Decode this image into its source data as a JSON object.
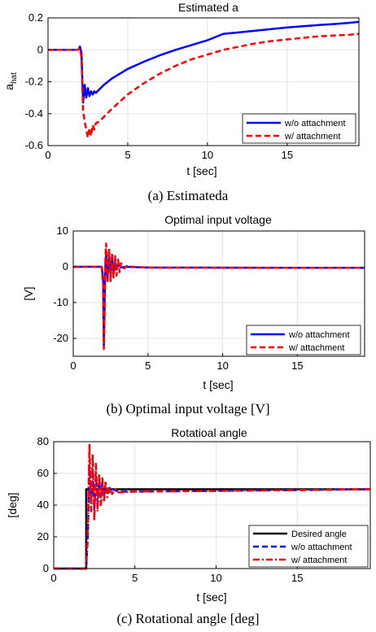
{
  "chart_data": [
    {
      "type": "line",
      "title": "Estimated a",
      "xlabel": "t [sec]",
      "ylabel_main": "a",
      "ylabel_sub": "hat",
      "caption": "(a) Estimateda",
      "xlim": [
        0,
        19.5
      ],
      "ylim": [
        -0.6,
        0.2
      ],
      "xticks": [
        0,
        5,
        10,
        15
      ],
      "yticks": [
        -0.6,
        -0.4,
        -0.2,
        0,
        0.2
      ],
      "xtick_labels": [
        "0",
        "5",
        "10",
        "15"
      ],
      "ytick_labels": [
        "-0.6",
        "-0.4",
        "-0.2",
        "0",
        "0.2"
      ],
      "grid": true,
      "legend_position": "bottom-right",
      "series": [
        {
          "name": "w/o attachment",
          "color": "#0000ff",
          "style": "solid",
          "x": [
            0,
            1.9,
            2.0,
            2.1,
            2.2,
            2.3,
            2.4,
            2.5,
            2.6,
            2.7,
            2.8,
            2.9,
            3.0,
            3.2,
            3.5,
            4.0,
            5.0,
            6.0,
            7.0,
            8.0,
            9.0,
            10.0,
            11.0,
            12.0,
            13.0,
            14.0,
            15.0,
            16.0,
            17.0,
            18.0,
            19.0,
            19.5
          ],
          "y": [
            0,
            0,
            0.02,
            -0.02,
            -0.33,
            -0.22,
            -0.3,
            -0.24,
            -0.29,
            -0.26,
            -0.28,
            -0.26,
            -0.27,
            -0.25,
            -0.22,
            -0.18,
            -0.12,
            -0.075,
            -0.035,
            0.0,
            0.03,
            0.06,
            0.1,
            0.11,
            0.12,
            0.13,
            0.14,
            0.148,
            0.155,
            0.162,
            0.17,
            0.175
          ]
        },
        {
          "name": "w/ attachment",
          "color": "#ff0000",
          "style": "dashed",
          "x": [
            0,
            1.9,
            2.0,
            2.1,
            2.2,
            2.3,
            2.4,
            2.5,
            2.6,
            2.7,
            2.8,
            2.9,
            3.0,
            3.2,
            3.5,
            4.0,
            5.0,
            6.0,
            7.0,
            8.0,
            9.0,
            10.0,
            11.0,
            12.0,
            13.0,
            14.0,
            15.0,
            16.0,
            17.0,
            18.0,
            19.0,
            19.5
          ],
          "y": [
            0,
            0,
            0.01,
            -0.05,
            -0.38,
            -0.45,
            -0.5,
            -0.55,
            -0.49,
            -0.54,
            -0.47,
            -0.5,
            -0.46,
            -0.45,
            -0.42,
            -0.37,
            -0.28,
            -0.21,
            -0.15,
            -0.1,
            -0.06,
            -0.03,
            0.0,
            0.02,
            0.04,
            0.055,
            0.065,
            0.075,
            0.085,
            0.09,
            0.095,
            0.1
          ]
        }
      ]
    },
    {
      "type": "line",
      "title": "Optimal input voltage",
      "xlabel": "t [sec]",
      "ylabel": "[V]",
      "caption": "(b) Optimal input voltage [V]",
      "xlim": [
        0,
        19.5
      ],
      "ylim": [
        -25,
        10
      ],
      "xticks": [
        0,
        5,
        10,
        15
      ],
      "yticks": [
        -20,
        -10,
        0,
        10
      ],
      "xtick_labels": [
        "0",
        "5",
        "10",
        "15"
      ],
      "ytick_labels": [
        "-20",
        "-10",
        "0",
        "10"
      ],
      "grid": true,
      "legend_position": "bottom-right",
      "series": [
        {
          "name": "w/o attachment",
          "color": "#0000ff",
          "style": "solid",
          "x": [
            0,
            1.9,
            2.0,
            2.05,
            2.1,
            2.15,
            2.2,
            2.3,
            2.4,
            2.5,
            2.6,
            2.7,
            2.8,
            2.9,
            3.0,
            3.2,
            3.5,
            4.0,
            5.0,
            10.0,
            15.0,
            19.5
          ],
          "y": [
            0,
            0,
            -3,
            -22,
            -10,
            0,
            4,
            -3,
            3,
            -2,
            2,
            -1.5,
            1.2,
            -0.8,
            0.6,
            -0.2,
            0,
            -0.1,
            -0.2,
            -0.25,
            -0.3,
            -0.3
          ]
        },
        {
          "name": "w/ attachment",
          "color": "#ff0000",
          "style": "dashed",
          "x": [
            0,
            1.9,
            2.0,
            2.05,
            2.1,
            2.15,
            2.2,
            2.3,
            2.4,
            2.5,
            2.6,
            2.7,
            2.8,
            2.9,
            3.0,
            3.1,
            3.2,
            3.4,
            3.6,
            4.0,
            5.0,
            10.0,
            15.0,
            19.5
          ],
          "y": [
            0,
            0,
            -5,
            -23,
            -12,
            2,
            6.5,
            -4,
            5,
            -4,
            4,
            -3,
            3,
            -2.5,
            2,
            -1.5,
            1,
            -0.5,
            0.3,
            0,
            -0.2,
            -0.25,
            -0.3,
            -0.3
          ]
        }
      ]
    },
    {
      "type": "line",
      "title": "Rotatioal angle",
      "xlabel": "t [sec]",
      "ylabel": "[deg]",
      "caption": "(c) Rotational angle [deg]",
      "xlim": [
        0,
        19.5
      ],
      "ylim": [
        0,
        80
      ],
      "xticks": [
        0,
        5,
        10,
        15
      ],
      "yticks": [
        0,
        20,
        40,
        60,
        80
      ],
      "xtick_labels": [
        "0",
        "5",
        "10",
        "15"
      ],
      "ytick_labels": [
        "0",
        "20",
        "40",
        "60",
        "80"
      ],
      "grid": true,
      "legend_position": "bottom-right",
      "series": [
        {
          "name": "Desired angle",
          "color": "#000000",
          "style": "solid",
          "x": [
            0,
            2.0,
            2.0,
            19.5
          ],
          "y": [
            0,
            0,
            50,
            50
          ]
        },
        {
          "name": "w/o attachment",
          "color": "#0000ff",
          "style": "dashed",
          "x": [
            0,
            2.0,
            2.1,
            2.2,
            2.3,
            2.4,
            2.5,
            2.6,
            2.7,
            2.8,
            2.9,
            3.0,
            3.1,
            3.2,
            3.4,
            3.6,
            4.0,
            5.0,
            10.0,
            15.0,
            19.5
          ],
          "y": [
            0,
            0,
            20,
            65,
            42,
            62,
            38,
            58,
            42,
            55,
            44,
            54,
            46,
            51,
            48,
            50,
            48.5,
            48.5,
            49,
            49.5,
            50
          ]
        },
        {
          "name": "w/ attachment",
          "color": "#ff0000",
          "style": "dashdot",
          "x": [
            0,
            2.0,
            2.1,
            2.2,
            2.3,
            2.4,
            2.5,
            2.6,
            2.7,
            2.8,
            2.9,
            3.0,
            3.1,
            3.2,
            3.3,
            3.4,
            3.6,
            3.8,
            4.0,
            5.0,
            10.0,
            15.0,
            19.5
          ],
          "y": [
            0,
            0,
            25,
            78,
            36,
            72,
            30,
            66,
            36,
            60,
            40,
            57,
            42,
            55,
            45,
            52,
            47,
            50,
            48,
            48.5,
            49,
            49.5,
            50
          ]
        }
      ]
    }
  ]
}
